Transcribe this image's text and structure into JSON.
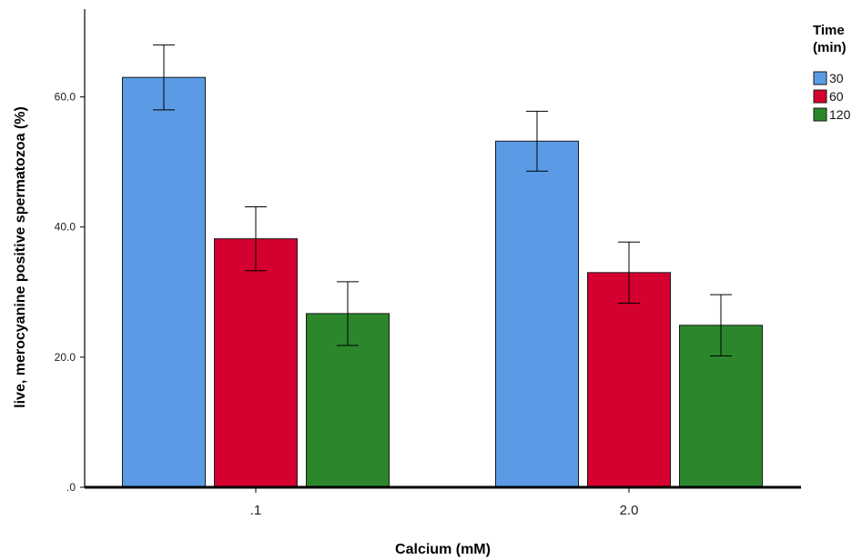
{
  "chart_data": {
    "type": "bar",
    "xlabel": "Calcium (mM)",
    "ylabel": "live, merocyanine positive spermatozoa (%)",
    "categories": [
      ".1",
      "2.0"
    ],
    "ylim": [
      0,
      73.5
    ],
    "yticks": [
      0,
      20,
      40,
      60
    ],
    "ytick_labels": [
      ".0",
      "20.0",
      "40.0",
      "60.0"
    ],
    "grid": false,
    "legend": {
      "title_lines": [
        "Time",
        "(min)"
      ],
      "placement": "top-right"
    },
    "series": [
      {
        "name": "30",
        "color": "#5b9be6",
        "values": [
          63.0,
          53.2
        ],
        "error": [
          5.0,
          4.6
        ]
      },
      {
        "name": "60",
        "color": "#d4002f",
        "values": [
          38.2,
          33.0
        ],
        "error": [
          4.9,
          4.7
        ]
      },
      {
        "name": "120",
        "color": "#2c872c",
        "values": [
          26.7,
          24.9
        ],
        "error": [
          4.9,
          4.7
        ]
      }
    ]
  }
}
